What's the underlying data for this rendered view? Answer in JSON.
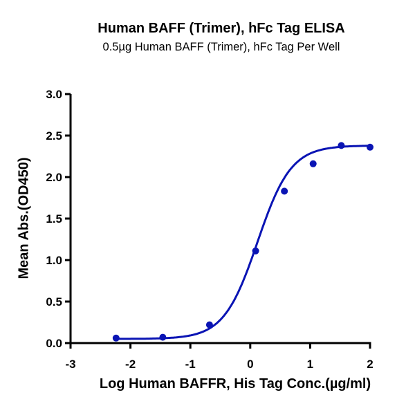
{
  "chart_data": {
    "type": "scatter",
    "title": "Human BAFF (Trimer), hFc Tag ELISA",
    "subtitle": "0.5µg Human BAFF (Trimer), hFc Tag Per Well",
    "xlabel": "Log Human BAFFR, His Tag Conc.(µg/ml)",
    "ylabel": "Mean Abs.(OD450)",
    "xlim": [
      -3,
      2
    ],
    "ylim": [
      0,
      3.0
    ],
    "xticks": [
      "-3",
      "-2",
      "-1",
      "0",
      "1",
      "2"
    ],
    "yticks": [
      "0.0",
      "0.5",
      "1.0",
      "1.5",
      "2.0",
      "2.5",
      "3.0"
    ],
    "grid": false,
    "legend": null,
    "series": [
      {
        "name": "Human BAFFR, His Tag",
        "color": "#0a14b4",
        "fit": "4PL sigmoidal curve",
        "x": [
          -2.24,
          -1.46,
          -0.68,
          0.09,
          0.57,
          1.05,
          1.52,
          2.0
        ],
        "y": [
          0.06,
          0.07,
          0.22,
          1.11,
          1.83,
          2.16,
          2.38,
          2.36
        ]
      }
    ],
    "fit_params": {
      "bottom": 0.05,
      "top": 2.38,
      "logEC50": 0.12,
      "hill": 1.55
    }
  }
}
